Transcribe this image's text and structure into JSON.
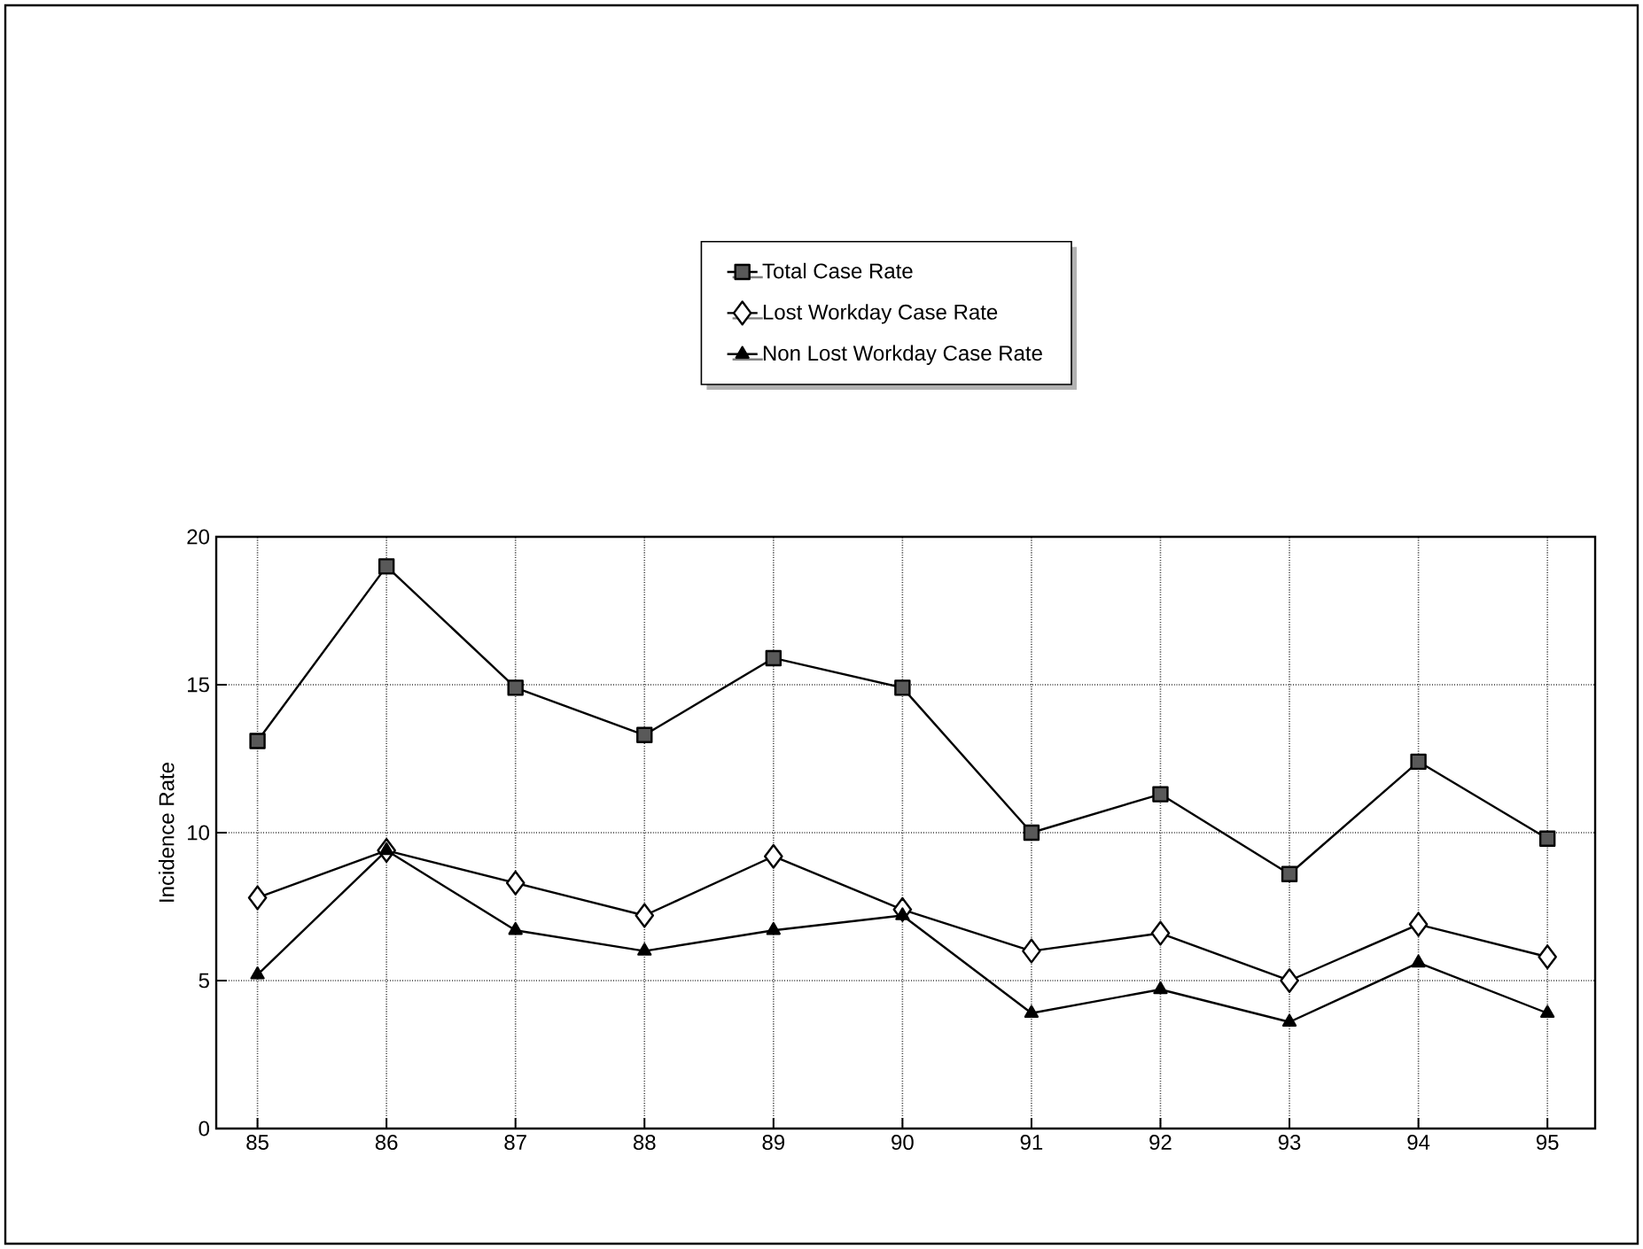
{
  "chart_data": {
    "type": "line",
    "ylabel": "Incidence Rate",
    "categories": [
      "85",
      "86",
      "87",
      "88",
      "89",
      "90",
      "91",
      "92",
      "93",
      "94",
      "95"
    ],
    "series": [
      {
        "name": "Total Case Rate",
        "color": "#000000",
        "marker": "square",
        "values": [
          13.1,
          19.0,
          14.9,
          13.3,
          15.9,
          14.9,
          10.0,
          11.3,
          8.6,
          12.4,
          9.8
        ]
      },
      {
        "name": "Lost Workday Case Rate",
        "color": "#000000",
        "marker": "diamond",
        "values": [
          7.8,
          9.4,
          8.3,
          7.2,
          9.2,
          7.4,
          6.0,
          6.6,
          5.0,
          6.9,
          5.8
        ]
      },
      {
        "name": "Non Lost Workday Case Rate",
        "color": "#000000",
        "marker": "triangle",
        "values": [
          5.2,
          9.4,
          6.7,
          6.0,
          6.7,
          7.2,
          3.9,
          4.7,
          3.6,
          5.6,
          3.9
        ]
      }
    ],
    "ylim": [
      0,
      20
    ],
    "yticks": [
      0,
      5,
      10,
      15,
      20
    ],
    "grid": true,
    "legend": "top",
    "line_style": "solid"
  }
}
